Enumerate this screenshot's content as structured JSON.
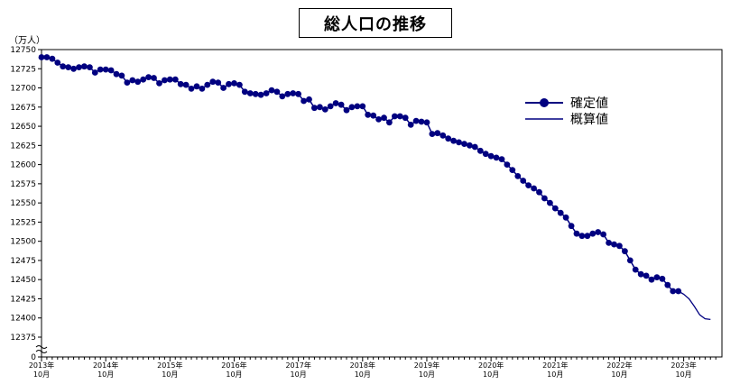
{
  "chart_data": {
    "type": "line",
    "title": "総人口の推移",
    "ylabel": "（万人）",
    "ylim": [
      12375,
      12750
    ],
    "y_bottom_label": "0",
    "yticks": [
      12375,
      12400,
      12425,
      12450,
      12475,
      12500,
      12525,
      12550,
      12575,
      12600,
      12625,
      12650,
      12675,
      12700,
      12725,
      12750
    ],
    "x_tick_labels": [
      {
        "year": "2013年",
        "month": "10月"
      },
      {
        "year": "2014年",
        "month": "10月"
      },
      {
        "year": "2015年",
        "month": "10月"
      },
      {
        "year": "2016年",
        "month": "10月"
      },
      {
        "year": "2017年",
        "month": "10月"
      },
      {
        "year": "2018年",
        "month": "10月"
      },
      {
        "year": "2019年",
        "month": "10月"
      },
      {
        "year": "2020年",
        "month": "10月"
      },
      {
        "year": "2021年",
        "month": "10月"
      },
      {
        "year": "2022年",
        "month": "10月"
      },
      {
        "year": "2023年",
        "month": "10月"
      }
    ],
    "x_start": "2013年10月",
    "series": [
      {
        "name": "確定値",
        "color": "#000080",
        "marker": "circle",
        "values": [
          12740,
          12740,
          12738,
          12733,
          12728,
          12727,
          12725,
          12727,
          12728,
          12727,
          12720,
          12724,
          12724,
          12723,
          12718,
          12716,
          12707,
          12710,
          12708,
          12711,
          12714,
          12713,
          12706,
          12710,
          12711,
          12711,
          12705,
          12704,
          12699,
          12702,
          12699,
          12704,
          12708,
          12707,
          12700,
          12705,
          12706,
          12704,
          12695,
          12693,
          12692,
          12691,
          12693,
          12697,
          12695,
          12689,
          12692,
          12693,
          12692,
          12683,
          12685,
          12674,
          12675,
          12672,
          12676,
          12680,
          12678,
          12671,
          12675,
          12676,
          12676,
          12665,
          12664,
          12659,
          12661,
          12655,
          12663,
          12663,
          12661,
          12652,
          12657,
          12656,
          12655,
          12640,
          12641,
          12638,
          12634,
          12631,
          12629,
          12627,
          12625,
          12623,
          12618,
          12614,
          12611,
          12609,
          12607,
          12600,
          12593,
          12585,
          12579,
          12573,
          12569,
          12564,
          12556,
          12550,
          12543,
          12537,
          12531,
          12520,
          12510,
          12507,
          12507,
          12510,
          12512,
          12509,
          12498,
          12496,
          12494,
          12487,
          12475,
          12463,
          12457,
          12455,
          12450,
          12453,
          12451,
          12443,
          12435,
          12435
        ]
      },
      {
        "name": "概算値",
        "color": "#000080",
        "marker": "none",
        "values": [
          12435,
          12431,
          12425,
          12415,
          12404,
          12399,
          12398
        ]
      }
    ],
    "legend": "right"
  }
}
